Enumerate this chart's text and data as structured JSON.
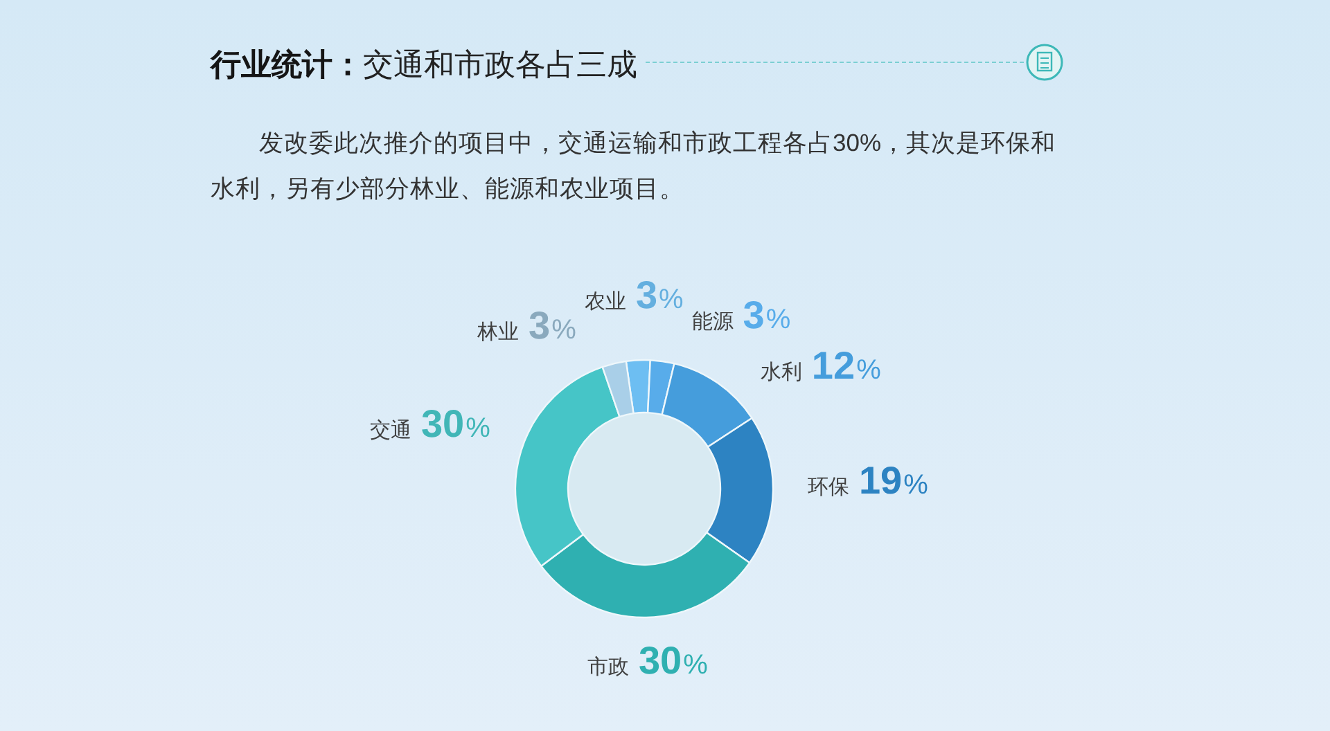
{
  "chart_data": {
    "type": "donut",
    "title": "**行业统计：**交通和市政各占三成",
    "subtitle": "发改委此次推介的项目中，交通运输和市政工程各占30%，其次是环保和水利，另有少部分林业、能源和农业项目。",
    "categories": [
      "农业",
      "能源",
      "水利",
      "环保",
      "市政",
      "交通",
      "林业"
    ],
    "values": [
      3,
      3,
      12,
      19,
      30,
      30,
      3
    ],
    "colors": [
      "#6dbef2",
      "#58acea",
      "#459ddc",
      "#2d83c2",
      "#2fb0b1",
      "#46c5c7",
      "#a9cfe8"
    ],
    "value_labels": [
      "3%",
      "3%",
      "12%",
      "19%",
      "30%",
      "30%",
      "3%"
    ]
  }
}
